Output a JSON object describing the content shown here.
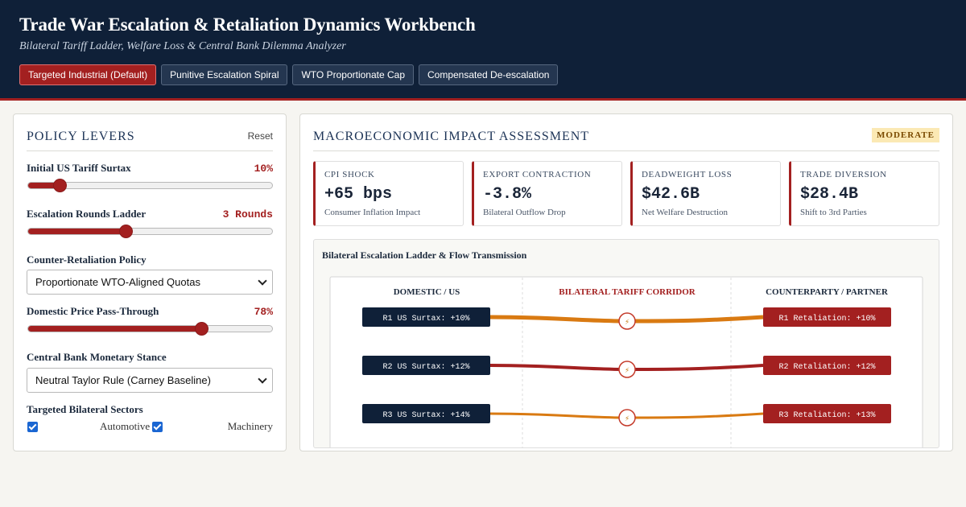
{
  "header": {
    "title": "Trade War Escalation & Retaliation Dynamics Workbench",
    "subtitle": "Bilateral Tariff Ladder, Welfare Loss & Central Bank Dilemma Analyzer",
    "presets": [
      {
        "label": "Targeted Industrial (Default)",
        "active": true
      },
      {
        "label": "Punitive Escalation Spiral",
        "active": false
      },
      {
        "label": "WTO Proportionate Cap",
        "active": false
      },
      {
        "label": "Compensated De-escalation",
        "active": false
      }
    ]
  },
  "levers": {
    "title": "POLICY LEVERS",
    "reset_label": "Reset",
    "tariff": {
      "label": "Initial US Tariff Surtax",
      "value": "10%",
      "position": 0.13
    },
    "rounds": {
      "label": "Escalation Rounds Ladder",
      "value": "3 Rounds",
      "position": 0.4
    },
    "retaliation": {
      "label": "Counter-Retaliation Policy",
      "selected": "Proportionate WTO-Aligned Quotas"
    },
    "passthrough": {
      "label": "Domestic Price Pass-Through",
      "value": "78%",
      "position": 0.71
    },
    "monetary": {
      "label": "Central Bank Monetary Stance",
      "selected": "Neutral Taylor Rule (Carney Baseline)"
    },
    "sectors": {
      "label": "Targeted Bilateral Sectors",
      "items": [
        {
          "label": "Automotive",
          "checked": true
        },
        {
          "label": "Machinery",
          "checked": true
        }
      ]
    }
  },
  "impact": {
    "title": "MACROECONOMIC IMPACT ASSESSMENT",
    "badge": "MODERATE",
    "kpis": [
      {
        "label": "CPI SHOCK",
        "value": "+65 bps",
        "note": "Consumer Inflation Impact"
      },
      {
        "label": "EXPORT CONTRACTION",
        "value": "-3.8%",
        "note": "Bilateral Outflow Drop"
      },
      {
        "label": "DEADWEIGHT LOSS",
        "value": "$42.6B",
        "note": "Net Welfare Destruction"
      },
      {
        "label": "TRADE DIVERSION",
        "value": "$28.4B",
        "note": "Shift to 3rd Parties"
      }
    ],
    "ladder": {
      "title": "Bilateral Escalation Ladder & Flow Transmission",
      "columns": [
        "DOMESTIC / US",
        "BILATERAL TARIFF CORRIDOR",
        "COUNTERPARTY / PARTNER"
      ],
      "rounds": [
        {
          "left": "R1 US Surtax: +10%",
          "right": "R1 Retaliation: +10%",
          "color": "#d97a12"
        },
        {
          "left": "R2 US Surtax: +12%",
          "right": "R2 Retaliation: +12%",
          "color": "#a32020"
        },
        {
          "left": "R3 US Surtax: +14%",
          "right": "R3 Retaliation: +13%",
          "color": "#d97a12"
        }
      ],
      "node_icon": "lightning-icon",
      "node_glyph": "⚡"
    }
  },
  "colors": {
    "header_bg": "#0f2038",
    "accent_red": "#a32020",
    "accent_orange": "#d97a12",
    "navy_box": "#0f2038"
  }
}
